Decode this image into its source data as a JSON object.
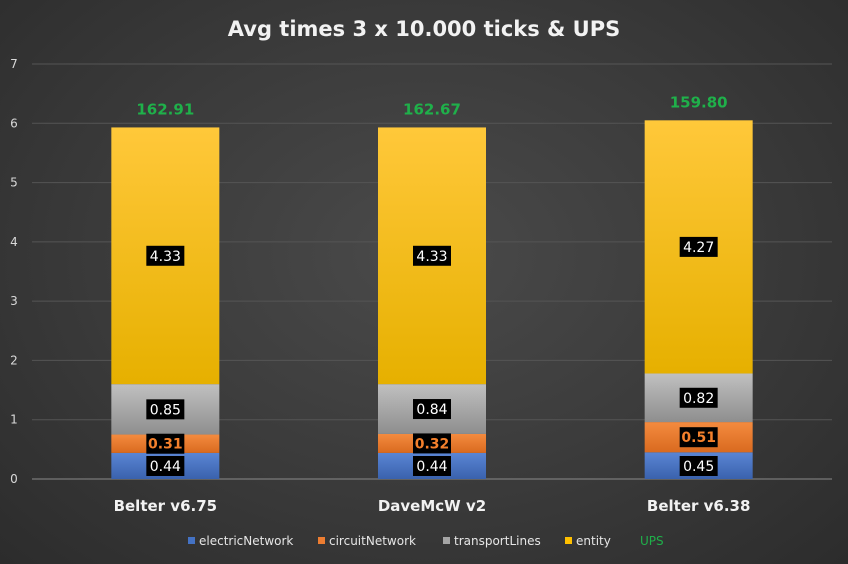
{
  "chart_data": {
    "type": "bar",
    "stacked": true,
    "title": "Avg times 3 x 10.000 ticks & UPS",
    "categories": [
      "Belter v6.75",
      "DaveMcW v2",
      "Belter v6.38"
    ],
    "series": [
      {
        "name": "electricNetwork",
        "color": "#4472c4",
        "values": [
          0.44,
          0.44,
          0.45
        ],
        "labels": [
          "0.44",
          "0.44",
          "0.45"
        ]
      },
      {
        "name": "circuitNetwork",
        "color": "#ed7d31",
        "values": [
          0.31,
          0.32,
          0.51
        ],
        "labels": [
          "0.31",
          "0.32",
          "0.51"
        ]
      },
      {
        "name": "transportLines",
        "color": "#a5a5a5",
        "values": [
          0.85,
          0.84,
          0.82
        ],
        "labels": [
          "0.85",
          "0.84",
          "0.82"
        ]
      },
      {
        "name": "entity",
        "color": "#ffc000",
        "values": [
          4.33,
          4.33,
          4.27
        ],
        "labels": [
          "4.33",
          "4.33",
          "4.27"
        ]
      }
    ],
    "ups": {
      "name": "UPS",
      "color": "#1fb04a",
      "values": [
        "162.91",
        "162.67",
        "159.80"
      ]
    },
    "ylim": [
      0,
      7
    ],
    "yticks": [
      "0",
      "1",
      "2",
      "3",
      "4",
      "5",
      "6",
      "7"
    ],
    "grid": true,
    "legend_position": "bottom"
  }
}
